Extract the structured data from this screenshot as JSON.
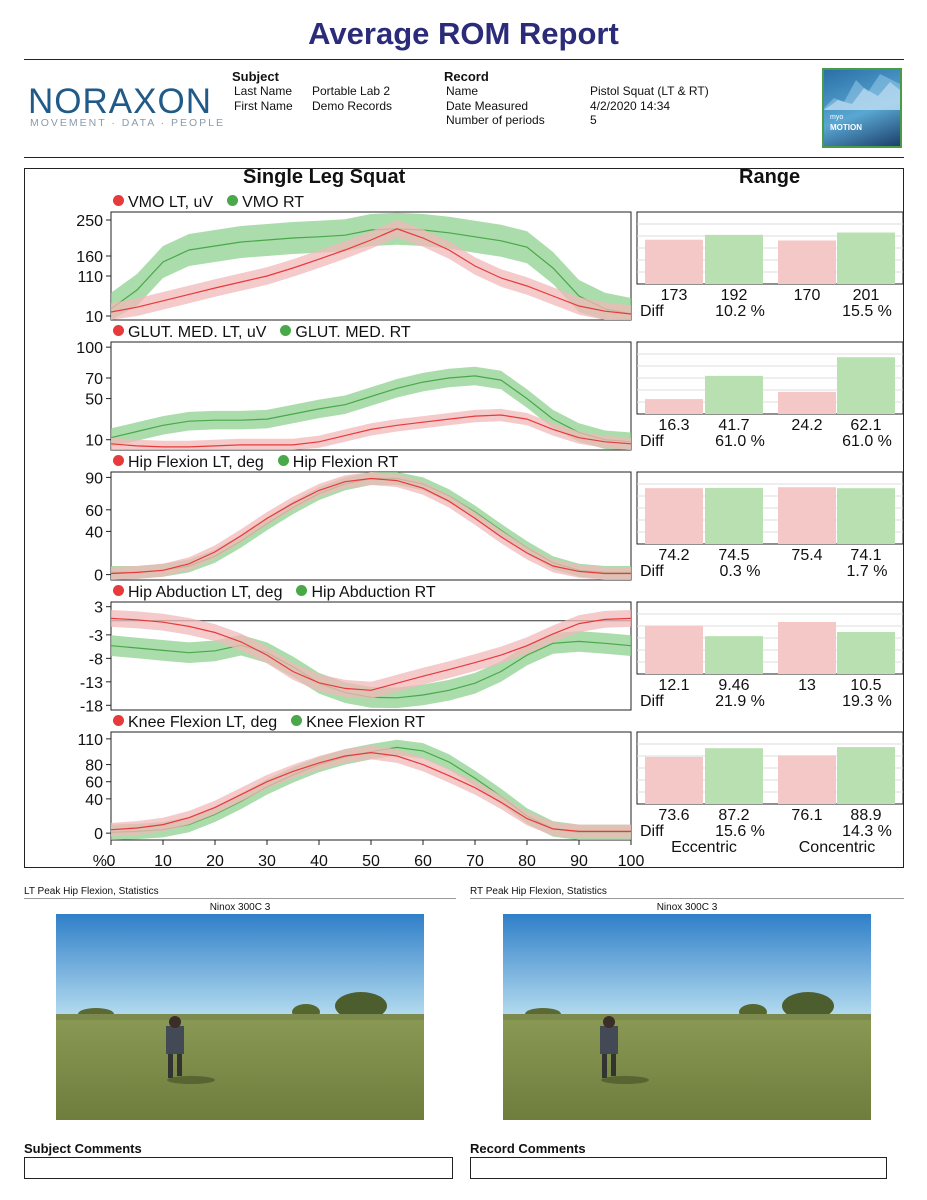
{
  "report_title": "Average ROM Report",
  "logo": {
    "name": "NORAXON",
    "tagline": "MOVEMENT · DATA · PEOPLE"
  },
  "subject": {
    "heading": "Subject",
    "last_name_label": "Last Name",
    "last_name": "Portable Lab 2",
    "first_name_label": "First Name",
    "first_name": "Demo Records"
  },
  "record": {
    "heading": "Record",
    "name_label": "Name",
    "name": "Pistol Squat (LT & RT)",
    "date_label": "Date Measured",
    "date": "4/2/2020 14:34",
    "periods_label": "Number of periods",
    "periods": "5"
  },
  "badge": {
    "line1": "myo",
    "line2": "MOTION"
  },
  "chart_title": "Single Leg Squat",
  "range_title": "Range",
  "colors": {
    "lt": "#e83a3a",
    "rt": "#4aa84a",
    "lt_band": "#f2b8b8",
    "rt_band": "#8fd08f",
    "lt_bar": "#f5c8c8",
    "rt_bar": "#b8e0b0"
  },
  "chart_data": {
    "type": "line",
    "x": [
      0,
      5,
      10,
      15,
      20,
      25,
      30,
      35,
      40,
      45,
      50,
      55,
      60,
      65,
      70,
      75,
      80,
      85,
      90,
      95,
      100
    ],
    "xticks": [
      "0",
      "10",
      "20",
      "30",
      "40",
      "50",
      "60",
      "70",
      "80",
      "90",
      "100"
    ],
    "x_unit": "%",
    "xlim": [
      0,
      100
    ],
    "panels": [
      {
        "label_lt": "VMO LT, uV",
        "label_rt": "VMO RT",
        "yticks": [
          "250",
          "160",
          "110",
          "10"
        ],
        "ytick_values": [
          250,
          160,
          110,
          10
        ],
        "ylim": [
          0,
          270
        ],
        "lt": [
          20,
          32,
          48,
          64,
          80,
          95,
          110,
          130,
          152,
          175,
          200,
          228,
          205,
          175,
          135,
          105,
          85,
          60,
          35,
          22,
          15
        ],
        "rt": [
          28,
          75,
          145,
          175,
          185,
          195,
          200,
          205,
          208,
          212,
          225,
          228,
          225,
          218,
          208,
          198,
          182,
          130,
          60,
          28,
          15
        ],
        "lt_band": 22,
        "rt_band": 40,
        "range": {
          "values": [
            "173",
            "192",
            "170",
            "201"
          ],
          "nums": [
            173,
            192,
            170,
            201
          ],
          "max": 250,
          "diff_label": "Diff",
          "diffs": [
            "10.2 %",
            "15.5 %"
          ]
        }
      },
      {
        "label_lt": "GLUT. MED. LT, uV",
        "label_rt": "GLUT. MED. RT",
        "yticks": [
          "100",
          "70",
          "50",
          "10"
        ],
        "ytick_values": [
          100,
          70,
          50,
          10
        ],
        "ylim": [
          0,
          105
        ],
        "lt": [
          6,
          4,
          3,
          3,
          4,
          5,
          5,
          5,
          8,
          14,
          20,
          24,
          27,
          30,
          33,
          34,
          30,
          20,
          12,
          8,
          6
        ],
        "rt": [
          12,
          18,
          24,
          28,
          29,
          29,
          30,
          35,
          40,
          44,
          52,
          60,
          66,
          70,
          72,
          68,
          50,
          30,
          17,
          10,
          8
        ],
        "lt_band": 6,
        "rt_band": 9,
        "range": {
          "values": [
            "16.3",
            "41.7",
            "24.2",
            "62.1"
          ],
          "nums": [
            16.3,
            41.7,
            24.2,
            62.1
          ],
          "max": 70,
          "diff_label": "Diff",
          "diffs": [
            "61.0 %",
            "61.0 %"
          ]
        }
      },
      {
        "label_lt": "Hip Flexion LT, deg",
        "label_rt": "Hip Flexion RT",
        "yticks": [
          "90",
          "60",
          "40",
          "0"
        ],
        "ytick_values": [
          90,
          60,
          40,
          0
        ],
        "ylim": [
          -5,
          95
        ],
        "lt": [
          1,
          2,
          4,
          10,
          21,
          36,
          52,
          66,
          78,
          86,
          89,
          87,
          80,
          68,
          52,
          35,
          20,
          8,
          3,
          1,
          1
        ],
        "rt": [
          2,
          2,
          4,
          8,
          17,
          31,
          47,
          62,
          75,
          84,
          89,
          89,
          84,
          73,
          58,
          41,
          25,
          11,
          4,
          2,
          2
        ],
        "lt_band": 6,
        "rt_band": 6,
        "range": {
          "values": [
            "74.2",
            "74.5",
            "75.4",
            "74.1"
          ],
          "nums": [
            74.2,
            74.5,
            75.4,
            74.1
          ],
          "max": 85,
          "diff_label": "Diff",
          "diffs": [
            "0.3 %",
            "1.7 %"
          ]
        }
      },
      {
        "label_lt": "Hip Abduction LT, deg",
        "label_rt": "Hip Abduction RT",
        "yticks": [
          "3",
          "-3",
          "-8",
          "-13",
          "-18"
        ],
        "ytick_values": [
          3,
          -3,
          -8,
          -13,
          -18
        ],
        "ylim": [
          -19,
          4
        ],
        "lt": [
          0.5,
          0.2,
          -0.3,
          -1.2,
          -2.5,
          -4.5,
          -7.3,
          -10.8,
          -13.2,
          -14.4,
          -14.8,
          -13.3,
          -11.8,
          -10.4,
          -8.9,
          -7.3,
          -5.3,
          -2.8,
          -0.6,
          0.3,
          0.5
        ],
        "rt": [
          -5.3,
          -5.8,
          -6.3,
          -6.8,
          -6.4,
          -5.2,
          -6.8,
          -9.8,
          -13.3,
          -15.3,
          -16.3,
          -16.4,
          -15.8,
          -14.8,
          -13.3,
          -10.8,
          -7.3,
          -4.8,
          -4.4,
          -4.8,
          -5.3
        ],
        "lt_band": 1.8,
        "rt_band": 2.2,
        "range": {
          "values": [
            "12.1",
            "9.46",
            "13",
            "10.5"
          ],
          "nums": [
            12.1,
            9.46,
            13,
            10.5
          ],
          "max": 16,
          "diff_label": "Diff",
          "diffs": [
            "21.9 %",
            "19.3 %"
          ]
        }
      },
      {
        "label_lt": "Knee Flexion LT, deg",
        "label_rt": "Knee Flexion RT",
        "yticks": [
          "110",
          "80",
          "60",
          "40",
          "0"
        ],
        "ytick_values": [
          110,
          80,
          60,
          40,
          0
        ],
        "ylim": [
          -8,
          118
        ],
        "lt": [
          4,
          6,
          10,
          18,
          30,
          45,
          60,
          72,
          82,
          90,
          94,
          90,
          80,
          67,
          53,
          36,
          17,
          5,
          2,
          2,
          2
        ],
        "rt": [
          1,
          2,
          4,
          10,
          22,
          37,
          54,
          68,
          80,
          89,
          95,
          100,
          96,
          83,
          64,
          43,
          20,
          5,
          1,
          1,
          1
        ],
        "lt_band": 8,
        "rt_band": 9,
        "range": {
          "values": [
            "73.6",
            "87.2",
            "76.1",
            "88.9"
          ],
          "nums": [
            73.6,
            87.2,
            76.1,
            88.9
          ],
          "max": 100,
          "diff_label": "Diff",
          "diffs": [
            "15.6 %",
            "14.3 %"
          ]
        }
      }
    ],
    "range_footer": [
      "Eccentric",
      "Concentric"
    ]
  },
  "stats": {
    "left_caption": "LT Peak Hip Flexion, Statistics",
    "right_caption": "RT Peak Hip Flexion, Statistics",
    "left_camera": "Ninox 300C 3",
    "right_camera": "Ninox 300C 3"
  },
  "comments": {
    "subject_label": "Subject Comments",
    "record_label": "Record Comments"
  }
}
